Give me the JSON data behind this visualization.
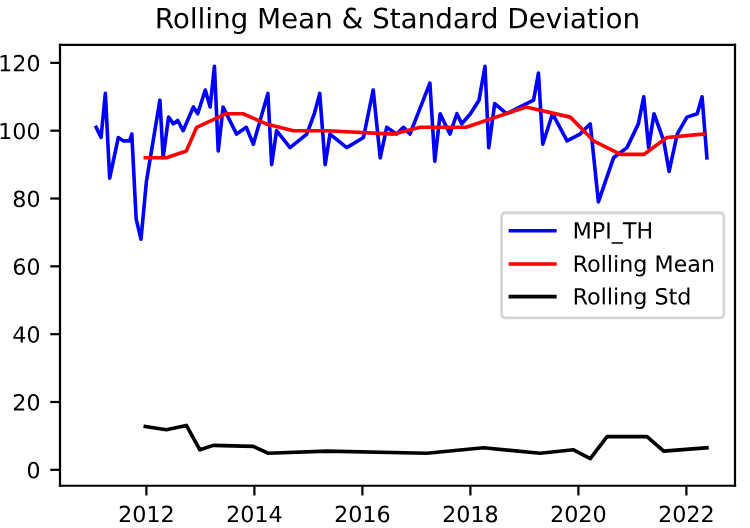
{
  "chart_data": {
    "type": "line",
    "title": "Rolling Mean & Standard Deviation",
    "series": [
      {
        "name": "MPI_TH",
        "color": "#0000ff",
        "x": [
          2011.07,
          2011.16,
          2011.24,
          2011.32,
          2011.48,
          2011.57,
          2011.69,
          2011.73,
          2011.81,
          2011.9,
          2012.0,
          2012.25,
          2012.31,
          2012.41,
          2012.5,
          2012.58,
          2012.68,
          2012.87,
          2012.95,
          2013.09,
          2013.18,
          2013.26,
          2013.33,
          2013.42,
          2013.67,
          2013.85,
          2013.98,
          2014.25,
          2014.32,
          2014.41,
          2014.66,
          2014.97,
          2015.11,
          2015.21,
          2015.31,
          2015.4,
          2015.71,
          2016.02,
          2016.2,
          2016.33,
          2016.45,
          2016.63,
          2016.76,
          2016.88,
          2017.25,
          2017.34,
          2017.44,
          2017.62,
          2017.75,
          2017.84,
          2018.0,
          2018.16,
          2018.27,
          2018.34,
          2018.45,
          2018.67,
          2018.92,
          2019.17,
          2019.26,
          2019.34,
          2019.52,
          2019.79,
          2020.03,
          2020.22,
          2020.37,
          2020.65,
          2020.9,
          2021.11,
          2021.21,
          2021.3,
          2021.4,
          2021.58,
          2021.68,
          2021.83,
          2022.01,
          2022.2,
          2022.29,
          2022.38
        ],
        "values": [
          101,
          98,
          111,
          86,
          98,
          97,
          97,
          99,
          74,
          68,
          85,
          109,
          92,
          104,
          102,
          103,
          100,
          107,
          105,
          112,
          107,
          119,
          94,
          107,
          99,
          101,
          96,
          111,
          90,
          100,
          95,
          99,
          105,
          111,
          90,
          99,
          95,
          98,
          112,
          92,
          101,
          99,
          101,
          99,
          114,
          91,
          105,
          99,
          105,
          102,
          105,
          109,
          119,
          95,
          108,
          105,
          107,
          109,
          117,
          96,
          105,
          97,
          99,
          102,
          79,
          92,
          95,
          102,
          110,
          95,
          105,
          97,
          88,
          99,
          104,
          105,
          110,
          92
        ]
      },
      {
        "name": "Rolling Mean",
        "color": "#ff0000",
        "x": [
          2011.98,
          2012.37,
          2012.74,
          2012.93,
          2013.48,
          2013.79,
          2014.22,
          2014.72,
          2015.34,
          2016.58,
          2017.07,
          2017.92,
          2019.03,
          2019.85,
          2020.28,
          2020.78,
          2021.21,
          2021.64,
          2022.32
        ],
        "values": [
          92,
          92,
          94,
          101,
          105,
          105,
          102,
          100,
          100,
          99,
          101,
          101,
          107,
          104,
          97,
          93,
          93,
          98,
          99
        ]
      },
      {
        "name": "Rolling Std",
        "color": "#000000",
        "x": [
          2011.98,
          2012.37,
          2012.74,
          2012.99,
          2013.24,
          2013.98,
          2014.25,
          2015.34,
          2017.19,
          2018.24,
          2019.29,
          2019.91,
          2020.22,
          2020.53,
          2021.27,
          2021.58,
          2022.38
        ],
        "values": [
          12.8,
          11.8,
          13.1,
          5.9,
          7.2,
          6.9,
          4.9,
          5.5,
          4.9,
          6.5,
          4.9,
          5.9,
          3.3,
          9.8,
          9.8,
          5.5,
          6.5
        ]
      }
    ],
    "xlim": [
      2010.4,
      2022.9
    ],
    "xticks": [
      2012,
      2014,
      2016,
      2018,
      2020,
      2022
    ],
    "ylim": [
      -4.7,
      125.3
    ],
    "yticks": [
      0,
      20,
      40,
      60,
      80,
      100,
      120
    ],
    "legend": "center right",
    "grid": false
  }
}
